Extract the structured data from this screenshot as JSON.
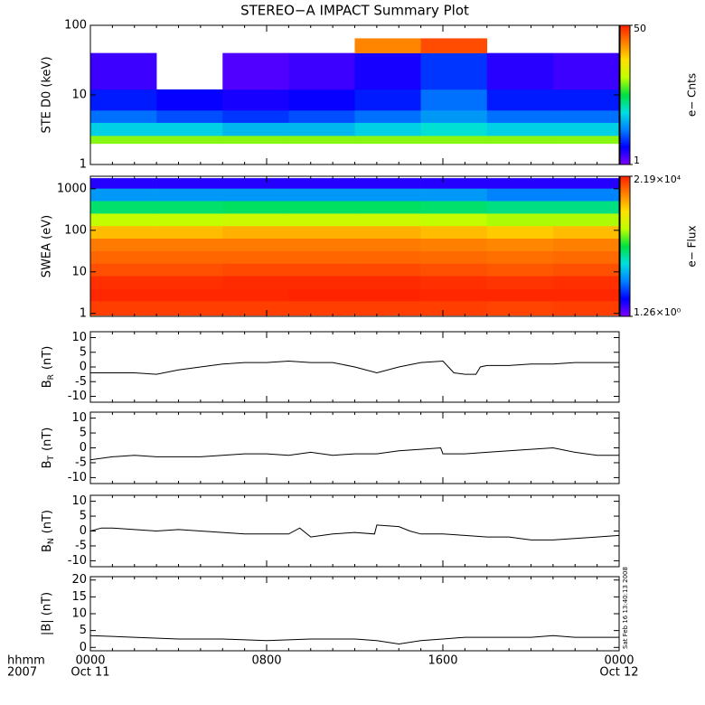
{
  "chart_data": [
    {
      "type": "heatmap",
      "title": "STEREO−A IMPACT Summary Plot",
      "ylabel": "STE D0 (keV)",
      "log_y": true,
      "xlim": [
        0,
        24
      ],
      "xticks": [
        0,
        8,
        16,
        24
      ],
      "ylim": [
        1,
        100
      ],
      "yticks": [
        1,
        10,
        100
      ],
      "x_bins": [
        0,
        3,
        6,
        9,
        12,
        15,
        18,
        21,
        24
      ],
      "y_bins": [
        2,
        2.6,
        4,
        6,
        12,
        40,
        65
      ],
      "z": [
        [
          10,
          10,
          10,
          10,
          10,
          10,
          10,
          10
        ],
        [
          4,
          4,
          3.5,
          3.5,
          4,
          4.5,
          4,
          4
        ],
        [
          2.5,
          2.2,
          2,
          2.2,
          2.5,
          3,
          2.5,
          2.5
        ],
        [
          1.8,
          1.6,
          1.5,
          1.6,
          1.8,
          2.5,
          1.8,
          1.8
        ],
        [
          1.3,
          null,
          1.2,
          1.3,
          1.5,
          2,
          1.4,
          1.3
        ],
        [
          null,
          null,
          null,
          null,
          30,
          40,
          null,
          null
        ]
      ],
      "clim": [
        1,
        50
      ],
      "cticks": [
        1,
        50
      ],
      "clabel": "e− Cnts",
      "colormap": [
        "#7f00ff",
        "#0000ff",
        "#0080ff",
        "#00e0e0",
        "#00e040",
        "#c0ff00",
        "#ffe000",
        "#ff8000",
        "#ff2000"
      ]
    },
    {
      "type": "heatmap",
      "ylabel": "SWEA (eV)",
      "log_y": true,
      "xlim": [
        0,
        24
      ],
      "xticks": [
        0,
        8,
        16,
        24
      ],
      "ylim": [
        0.85,
        2000
      ],
      "yticks": [
        1,
        10,
        100,
        1000
      ],
      "x_bins": [
        0,
        3,
        6,
        9,
        12,
        15,
        18,
        21,
        24
      ],
      "y_bins": [
        0.9,
        2,
        4,
        8,
        16,
        32,
        64,
        128,
        256,
        512,
        1024,
        1800
      ],
      "z": [
        [
          15000,
          15000,
          15000,
          15000,
          15000,
          15000,
          14000,
          15000
        ],
        [
          20000,
          20000,
          20000,
          21000,
          21000,
          20000,
          20000,
          20000
        ],
        [
          18000,
          18000,
          19000,
          19000,
          19000,
          18000,
          17000,
          18000
        ],
        [
          12000,
          12000,
          13000,
          13000,
          13000,
          12000,
          11000,
          12000
        ],
        [
          9000,
          9000,
          9000,
          9000,
          9000,
          8500,
          8000,
          8500
        ],
        [
          7000,
          7000,
          7000,
          7000,
          7000,
          6500,
          6000,
          6500
        ],
        [
          3000,
          3000,
          3500,
          3500,
          3500,
          3000,
          2500,
          3000
        ],
        [
          600,
          600,
          700,
          700,
          700,
          600,
          500,
          500
        ],
        [
          120,
          120,
          130,
          130,
          130,
          120,
          100,
          100
        ],
        [
          20,
          20,
          20,
          20,
          20,
          20,
          15,
          15
        ],
        [
          3,
          3,
          3,
          3,
          3,
          3,
          3,
          3
        ]
      ],
      "clim": [
        1.26,
        21900
      ],
      "cticks": [
        {
          "value": 1.26,
          "label": "1.26×10⁰"
        },
        {
          "value": 21900,
          "label": "2.19×10⁴"
        }
      ],
      "clabel": "e− Flux",
      "colormap": [
        "#7f00ff",
        "#0000ff",
        "#0080ff",
        "#00e0e0",
        "#00e040",
        "#c0ff00",
        "#ffe000",
        "#ff8000",
        "#ff2000"
      ]
    },
    {
      "type": "line",
      "ylabel": "B",
      "ylabel_sub": "R",
      "ylabel_unit": "(nT)",
      "color": "#000000",
      "xlim": [
        0,
        24
      ],
      "xticks": [
        0,
        8,
        16,
        24
      ],
      "ylim": [
        -12,
        12
      ],
      "yticks": [
        -10,
        -5,
        0,
        5,
        10
      ],
      "x": [
        0,
        1,
        2,
        3,
        4,
        5,
        6,
        7,
        8,
        9,
        10,
        11,
        12,
        13,
        14,
        15,
        16,
        16.5,
        17,
        17.5,
        17.7,
        18,
        19,
        20,
        21,
        22,
        23,
        24
      ],
      "values": [
        -2,
        -2,
        -2,
        -2.5,
        -1,
        0,
        1,
        1.5,
        1.5,
        2,
        1.5,
        1.5,
        0,
        -2,
        0,
        1.5,
        2,
        -2,
        -2.5,
        -2.5,
        0,
        0.5,
        0.5,
        1,
        1,
        1.5,
        1.5,
        1.5
      ]
    },
    {
      "type": "line",
      "ylabel": "B",
      "ylabel_sub": "T",
      "ylabel_unit": "(nT)",
      "color": "#000000",
      "xlim": [
        0,
        24
      ],
      "xticks": [
        0,
        8,
        16,
        24
      ],
      "ylim": [
        -12,
        12
      ],
      "yticks": [
        -10,
        -5,
        0,
        5,
        10
      ],
      "x": [
        0,
        1,
        2,
        3,
        4,
        5,
        6,
        7,
        8,
        9,
        10,
        11,
        12,
        13,
        14,
        15,
        15.9,
        16,
        17,
        18,
        19,
        20,
        21,
        22,
        23,
        24
      ],
      "values": [
        -4,
        -3,
        -2.5,
        -3,
        -3,
        -3,
        -2.5,
        -2,
        -2,
        -2.5,
        -1.5,
        -2.5,
        -2,
        -2,
        -1,
        -0.5,
        0,
        -2,
        -2,
        -1.5,
        -1,
        -0.5,
        0,
        -1.5,
        -2.5,
        -2.5
      ]
    },
    {
      "type": "line",
      "ylabel": "B",
      "ylabel_sub": "N",
      "ylabel_unit": "(nT)",
      "color": "#000000",
      "xlim": [
        0,
        24
      ],
      "xticks": [
        0,
        8,
        16,
        24
      ],
      "ylim": [
        -12,
        12
      ],
      "yticks": [
        -10,
        -5,
        0,
        5,
        10
      ],
      "x": [
        0,
        0.5,
        1,
        2,
        3,
        4,
        5,
        6,
        7,
        8,
        9,
        9.5,
        10,
        11,
        12,
        12.9,
        13,
        14,
        14.5,
        15,
        16,
        17,
        18,
        19,
        20,
        21,
        22,
        23,
        24
      ],
      "values": [
        0,
        1,
        1,
        0.5,
        0,
        0.5,
        0,
        -0.5,
        -1,
        -1,
        -1,
        1,
        -2,
        -1,
        -0.5,
        -1,
        2,
        1.5,
        0,
        -1,
        -1,
        -1.5,
        -2,
        -2,
        -3,
        -3,
        -2.5,
        -2,
        -1.5
      ]
    },
    {
      "type": "line",
      "ylabel": "|B| (nT)",
      "color": "#000000",
      "xlim": [
        0,
        24
      ],
      "xticks": [
        {
          "value": 0,
          "label": "0000"
        },
        {
          "value": 8,
          "label": "0800"
        },
        {
          "value": 16,
          "label": "1600"
        },
        {
          "value": 24,
          "label": "0000"
        }
      ],
      "ylim": [
        -1,
        21
      ],
      "yticks": [
        0,
        5,
        10,
        15,
        20
      ],
      "x": [
        0,
        2,
        4,
        6,
        8,
        10,
        12,
        13,
        14,
        15,
        16,
        17,
        18,
        20,
        21,
        22,
        24
      ],
      "values": [
        3.5,
        3,
        2.5,
        2.5,
        2,
        2.5,
        2.5,
        2,
        1,
        2,
        2.5,
        3,
        3,
        3,
        3.5,
        3,
        3
      ],
      "x_dates": [
        {
          "value": 0,
          "label": "Oct 11"
        },
        {
          "value": 24,
          "label": "Oct 12"
        }
      ],
      "x_title": [
        "hhmm",
        "2007"
      ],
      "stamp": "Sat Feb 16 13:40:13 2008"
    }
  ]
}
